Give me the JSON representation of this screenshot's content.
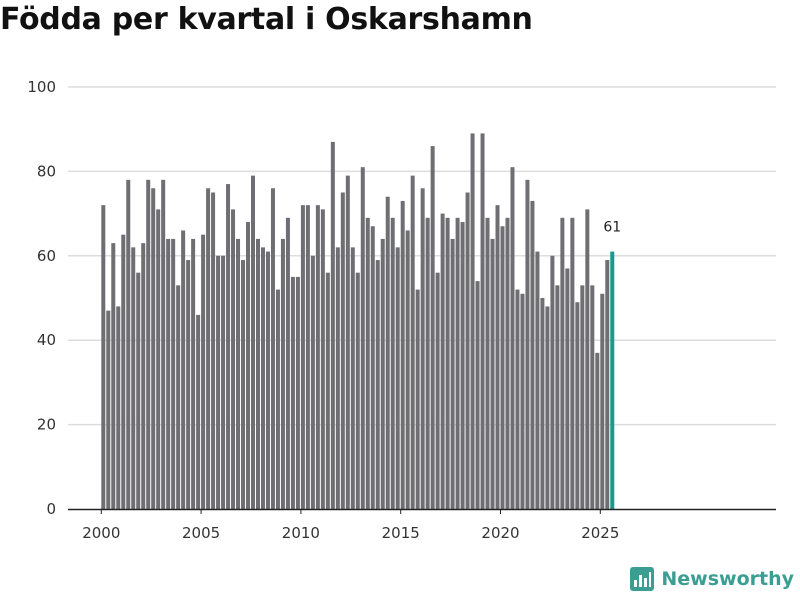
{
  "chart_data": {
    "type": "bar",
    "title": "Födda per kvartal i Oskarshamn",
    "xlabel": "",
    "ylabel": "",
    "ylim": [
      0,
      100
    ],
    "yticks": [
      0,
      20,
      40,
      60,
      80,
      100
    ],
    "xticks": [
      {
        "label": "2000",
        "year": 2000
      },
      {
        "label": "2005",
        "year": 2005
      },
      {
        "label": "2010",
        "year": 2010
      },
      {
        "label": "2015",
        "year": 2015
      },
      {
        "label": "2020",
        "year": 2020
      },
      {
        "label": "2025",
        "year": 2025
      }
    ],
    "start_year": 2000,
    "start_quarter": 1,
    "values": [
      72,
      47,
      63,
      48,
      65,
      78,
      62,
      56,
      63,
      78,
      76,
      71,
      78,
      64,
      64,
      53,
      66,
      59,
      64,
      46,
      65,
      76,
      75,
      60,
      60,
      77,
      71,
      64,
      59,
      68,
      79,
      64,
      62,
      61,
      76,
      52,
      64,
      69,
      55,
      55,
      72,
      72,
      60,
      72,
      71,
      56,
      87,
      62,
      75,
      79,
      62,
      56,
      81,
      69,
      67,
      59,
      64,
      74,
      69,
      62,
      73,
      66,
      79,
      52,
      76,
      69,
      86,
      56,
      70,
      69,
      64,
      69,
      68,
      75,
      89,
      54,
      89,
      69,
      64,
      72,
      67,
      69,
      81,
      52,
      51,
      78,
      73,
      61,
      50,
      48,
      60,
      53,
      69,
      57,
      69,
      49,
      53,
      71,
      53,
      37,
      51,
      59,
      61
    ],
    "highlight": {
      "label": "61",
      "color": "#1a9a8f"
    },
    "bar_color": "#6e6e73"
  },
  "brand": {
    "name": "Newsworthy",
    "icon": "newsworthy-logo-icon"
  }
}
